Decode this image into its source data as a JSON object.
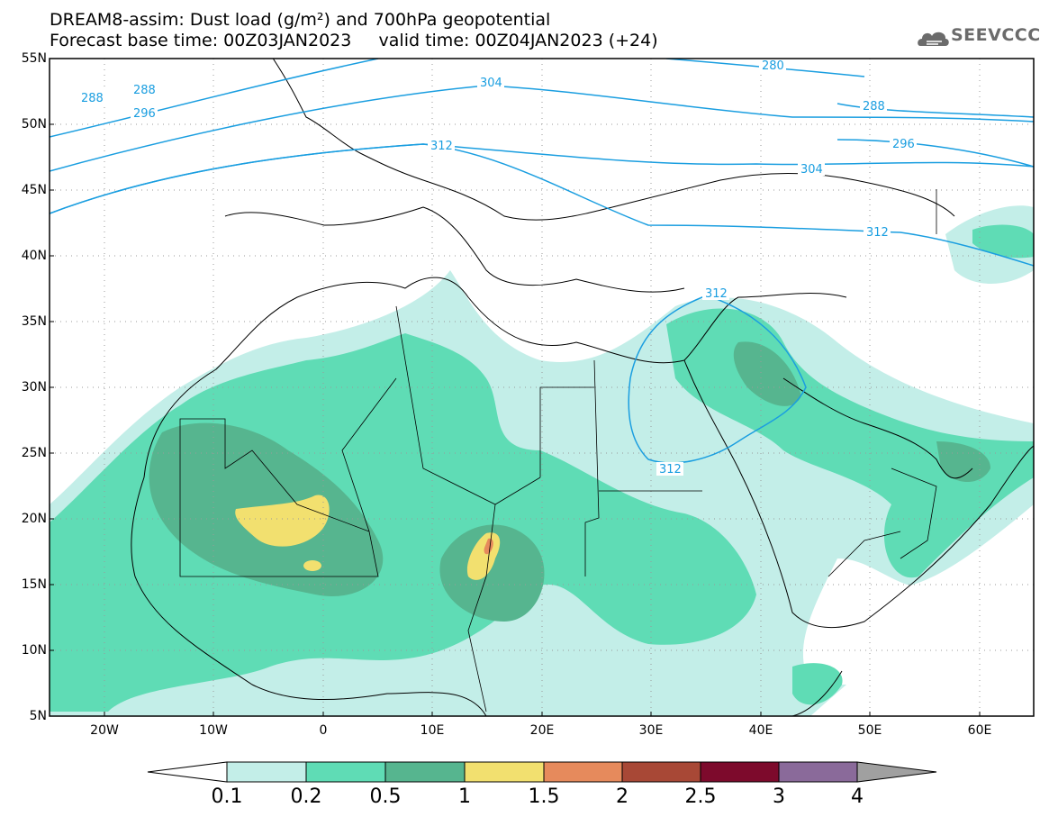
{
  "header": {
    "title_line1": "DREAM8-assim: Dust load (g/m²) and 700hPa geopotential",
    "title_line2": "Forecast base time: 00Z03JAN2023     valid time: 00Z04JAN2023 (+24)",
    "logo_text": "SEEVCCC"
  },
  "map": {
    "lat_labels": [
      "55N",
      "50N",
      "45N",
      "40N",
      "35N",
      "30N",
      "25N",
      "20N",
      "15N",
      "10N",
      "5N"
    ],
    "lon_labels": [
      "20W",
      "10W",
      "0",
      "10E",
      "20E",
      "30E",
      "40E",
      "50E",
      "60E"
    ],
    "contour_labels": [
      "288",
      "288",
      "296",
      "304",
      "312",
      "280",
      "288",
      "296",
      "304",
      "312",
      "312",
      "312"
    ],
    "contour_color": "#1a9ee0"
  },
  "colorbar": {
    "labels": [
      "0.1",
      "0.2",
      "0.5",
      "1",
      "1.5",
      "2",
      "2.5",
      "3",
      "4"
    ],
    "colors": [
      "#ffffff",
      "#c3eee8",
      "#5fdcb5",
      "#56b58f",
      "#f2e06f",
      "#e68a5c",
      "#a84836",
      "#7d0a2c",
      "#8a6a9a",
      "#a0a0a0"
    ]
  },
  "dust_colors": {
    "light": "#c3eee8",
    "medium": "#5fdcb5",
    "dark": "#56b58f",
    "yellow": "#f2e06f",
    "orange": "#e68a5c"
  }
}
